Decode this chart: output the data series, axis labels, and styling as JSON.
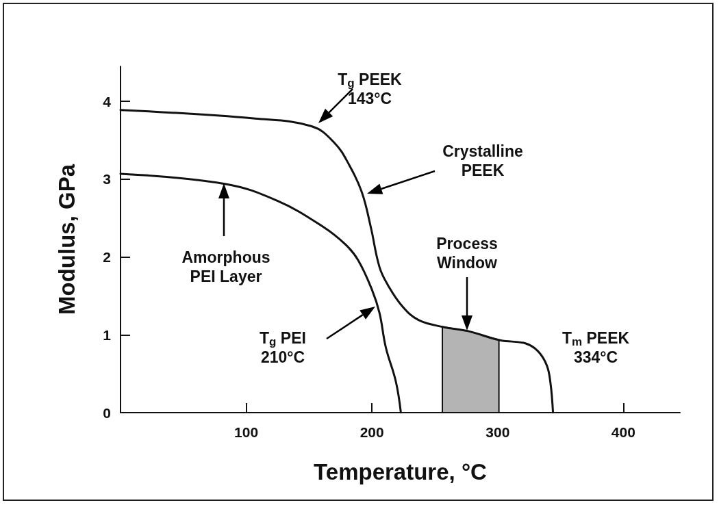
{
  "chart_data": {
    "type": "line",
    "xlabel": "Temperature, °C",
    "ylabel": "Modulus, GPa",
    "xlim": [
      0,
      445
    ],
    "xticks": [
      100,
      200,
      300,
      400
    ],
    "ylim": [
      0,
      4.45
    ],
    "yticks": [
      0,
      1,
      2,
      3,
      4
    ],
    "grid": false,
    "marker": "none",
    "line_style": "solid",
    "series": [
      {
        "color": "#111111",
        "x": [
          0,
          107,
          152,
          170,
          182,
          192,
          199,
          206,
          213,
          224,
          237,
          257,
          276,
          302,
          322,
          332,
          339,
          342,
          344
        ],
        "values": [
          3.89,
          3.78,
          3.68,
          3.47,
          3.18,
          2.83,
          2.39,
          1.87,
          1.63,
          1.37,
          1.19,
          1.1,
          1.05,
          0.93,
          0.89,
          0.79,
          0.61,
          0.38,
          0
        ]
      },
      {
        "color": "#111111",
        "x": [
          0,
          83,
          125,
          161,
          179,
          189,
          200,
          206,
          211,
          219,
          223
        ],
        "values": [
          3.07,
          2.94,
          2.72,
          2.39,
          2.16,
          1.96,
          1.58,
          1.28,
          0.84,
          0.4,
          0
        ]
      }
    ],
    "bands": [
      {
        "axis": "x",
        "from": 256,
        "to": 301,
        "color": "#b4b4b4"
      }
    ],
    "annotations": [
      "T$_{g}$ PEEK\n143°C",
      "Crystalline\nPEEK",
      "Amorphous\nPEI Layer",
      "T$_{g}$ PEI\n210°C",
      "Process\nWindow",
      "T$_{m}$ PEEK\n334°C"
    ]
  }
}
